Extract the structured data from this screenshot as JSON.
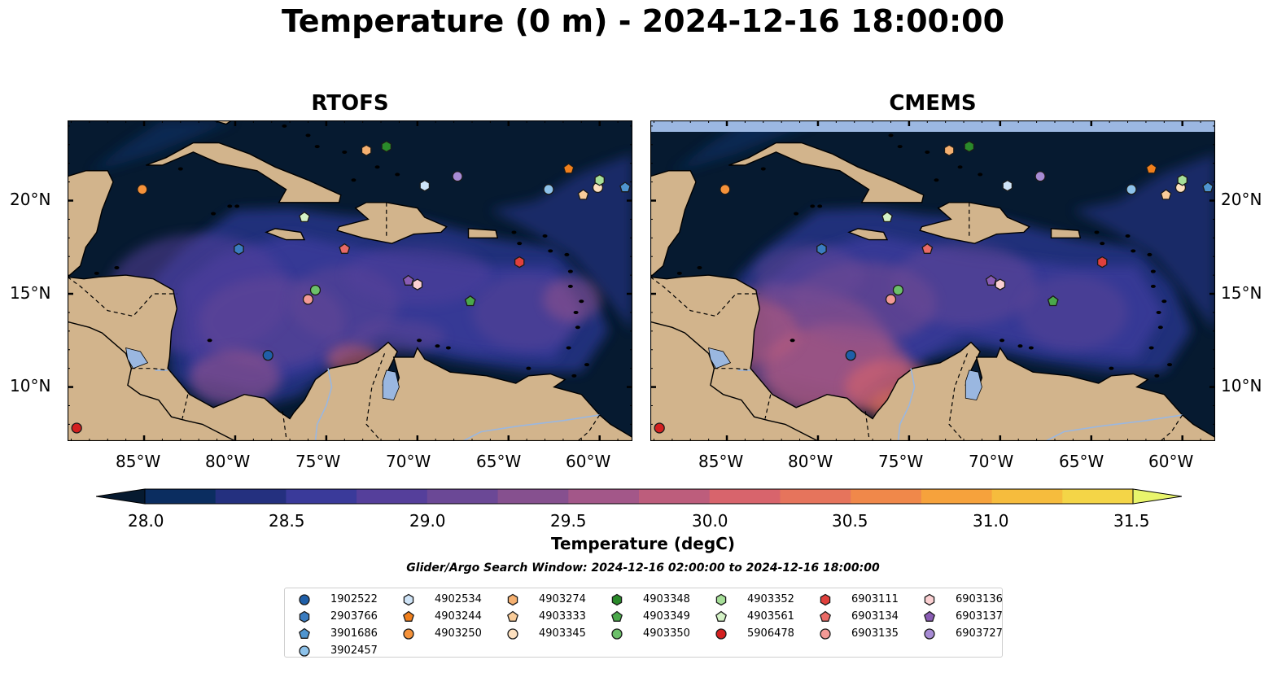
{
  "title": "Temperature (0 m) - 2024-12-16 18:00:00",
  "panels": [
    {
      "title": "RTOFS"
    },
    {
      "title": "CMEMS"
    }
  ],
  "axes": {
    "lon_ticks": [
      "85°W",
      "80°W",
      "75°W",
      "70°W",
      "65°W",
      "60°W"
    ],
    "lat_ticks": [
      "20°N",
      "15°N",
      "10°N"
    ]
  },
  "colorbar": {
    "label": "Temperature (degC)",
    "tick_labels": [
      "28.0",
      "28.5",
      "29.0",
      "29.5",
      "30.0",
      "30.5",
      "31.0",
      "31.5"
    ],
    "range": [
      28.0,
      31.5
    ],
    "colors": [
      "#061a30",
      "#0b2d60",
      "#24307f",
      "#3a3a9a",
      "#553f9b",
      "#6b4896",
      "#86508f",
      "#a35789",
      "#bd5d7c",
      "#d8646c",
      "#e6745c",
      "#f0884a",
      "#f6a23c",
      "#f6bc3d",
      "#f4d547",
      "#e9f56c"
    ]
  },
  "search_window": "Glider/Argo Search Window: 2024-12-16 02:00:00 to 2024-12-16 18:00:00",
  "legend": [
    {
      "id": "1902522",
      "marker": "circle",
      "color": "#1f5fa8"
    },
    {
      "id": "2903766",
      "marker": "hexagon",
      "color": "#3a7cc0"
    },
    {
      "id": "3901686",
      "marker": "pentagon",
      "color": "#4f95d0"
    },
    {
      "id": "3902457",
      "marker": "circle",
      "color": "#8dc2ea"
    },
    {
      "id": "4902534",
      "marker": "hexagon",
      "color": "#cfe4f7"
    },
    {
      "id": "4903244",
      "marker": "pentagon",
      "color": "#f07f1c"
    },
    {
      "id": "4903250",
      "marker": "circle",
      "color": "#f5923a"
    },
    {
      "id": "4903274",
      "marker": "hexagon",
      "color": "#f5b070"
    },
    {
      "id": "4903333",
      "marker": "pentagon",
      "color": "#f9cc99"
    },
    {
      "id": "4903345",
      "marker": "circle",
      "color": "#fde0bf"
    },
    {
      "id": "4903348",
      "marker": "hexagon",
      "color": "#2a8a2a"
    },
    {
      "id": "4903349",
      "marker": "pentagon",
      "color": "#4aa84a"
    },
    {
      "id": "4903350",
      "marker": "circle",
      "color": "#6cc06a"
    },
    {
      "id": "4903352",
      "marker": "hexagon",
      "color": "#a6df98"
    },
    {
      "id": "4903561",
      "marker": "pentagon",
      "color": "#d4f2c6"
    },
    {
      "id": "5906478",
      "marker": "circle",
      "color": "#d42020"
    },
    {
      "id": "6903111",
      "marker": "hexagon",
      "color": "#e0403c"
    },
    {
      "id": "6903134",
      "marker": "pentagon",
      "color": "#ea6a66"
    },
    {
      "id": "6903135",
      "marker": "circle",
      "color": "#f39a96"
    },
    {
      "id": "6903136",
      "marker": "hexagon",
      "color": "#fbd0d2"
    },
    {
      "id": "6903137",
      "marker": "pentagon",
      "color": "#8a5cb4"
    },
    {
      "id": "6903727",
      "marker": "circle",
      "color": "#a78bd4"
    }
  ],
  "floats": [
    {
      "id": "1902522",
      "lon": -78.2,
      "lat": 11.7
    },
    {
      "id": "2903766",
      "lon": -79.8,
      "lat": 17.4
    },
    {
      "id": "3901686",
      "lon": -58.6,
      "lat": 20.7
    },
    {
      "id": "3902457",
      "lon": -62.8,
      "lat": 20.6
    },
    {
      "id": "4902534",
      "lon": -69.6,
      "lat": 20.8
    },
    {
      "id": "4903244",
      "lon": -61.7,
      "lat": 21.7
    },
    {
      "id": "4903250",
      "lon": -85.1,
      "lat": 20.6
    },
    {
      "id": "4903274",
      "lon": -72.8,
      "lat": 22.7
    },
    {
      "id": "4903333",
      "lon": -60.9,
      "lat": 20.3
    },
    {
      "id": "4903345",
      "lon": -60.1,
      "lat": 20.7
    },
    {
      "id": "4903348",
      "lon": -71.7,
      "lat": 22.9
    },
    {
      "id": "4903349",
      "lon": -67.1,
      "lat": 14.6
    },
    {
      "id": "4903350",
      "lon": -75.6,
      "lat": 15.2
    },
    {
      "id": "4903352",
      "lon": -60.0,
      "lat": 21.1
    },
    {
      "id": "4903561",
      "lon": -76.2,
      "lat": 19.1
    },
    {
      "id": "5906478",
      "lon": -88.7,
      "lat": 7.8
    },
    {
      "id": "6903111",
      "lon": -64.4,
      "lat": 16.7
    },
    {
      "id": "6903134",
      "lon": -74.0,
      "lat": 17.4
    },
    {
      "id": "6903135",
      "lon": -76.0,
      "lat": 14.7
    },
    {
      "id": "6903136",
      "lon": -70.0,
      "lat": 15.5
    },
    {
      "id": "6903137",
      "lon": -70.5,
      "lat": 15.7
    },
    {
      "id": "6903727",
      "lon": -67.8,
      "lat": 21.3
    }
  ]
}
